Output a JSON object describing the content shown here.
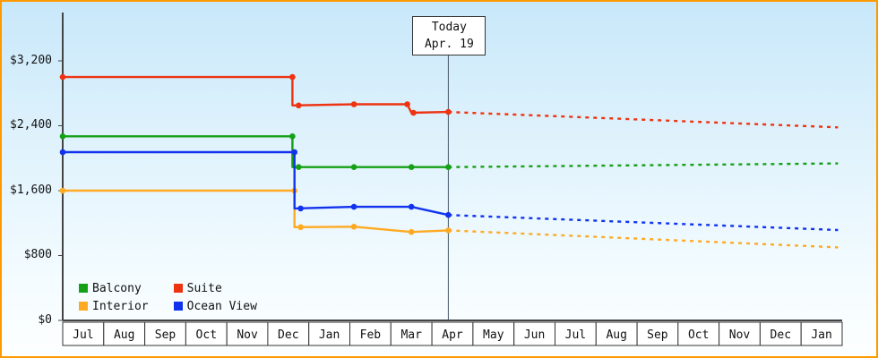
{
  "chart_data": {
    "type": "line",
    "title": "",
    "xlabel": "",
    "ylabel": "",
    "ylim": [
      0,
      3200
    ],
    "yticks": [
      0,
      800,
      1600,
      2400,
      3200
    ],
    "ytick_labels": [
      "$0",
      "$800",
      "$1,600",
      "$2,400",
      "$3,200"
    ],
    "x_months": [
      "Jul",
      "Aug",
      "Sep",
      "Oct",
      "Nov",
      "Dec",
      "Jan",
      "Feb",
      "Mar",
      "Apr",
      "May",
      "Jun",
      "Jul",
      "Aug",
      "Sep",
      "Oct",
      "Nov",
      "Dec",
      "Jan"
    ],
    "grid": false,
    "legend_position": "bottom-left",
    "today": {
      "label": "Today",
      "date": "Apr. 19",
      "month_position": 9.4
    },
    "series": [
      {
        "name": "Balcony",
        "color": "#16a016",
        "solid": [
          [
            0,
            2270
          ],
          [
            5.6,
            2270
          ],
          [
            5.6,
            1890
          ],
          [
            9.4,
            1890
          ]
        ],
        "dotted": [
          [
            9.4,
            1890
          ],
          [
            18.9,
            1935
          ]
        ],
        "markers": [
          [
            0,
            2270
          ],
          [
            5.6,
            2270
          ],
          [
            5.75,
            1890
          ],
          [
            7.1,
            1890
          ],
          [
            8.5,
            1890
          ],
          [
            9.4,
            1890
          ]
        ]
      },
      {
        "name": "Suite",
        "color": "#ee3311",
        "solid": [
          [
            0,
            3000
          ],
          [
            5.6,
            3000
          ],
          [
            5.6,
            2650
          ],
          [
            7.1,
            2665
          ],
          [
            8.4,
            2665
          ],
          [
            8.5,
            2560
          ],
          [
            9.4,
            2570
          ]
        ],
        "dotted": [
          [
            9.4,
            2570
          ],
          [
            18.9,
            2380
          ]
        ],
        "markers": [
          [
            0,
            3000
          ],
          [
            5.6,
            3000
          ],
          [
            5.75,
            2650
          ],
          [
            7.1,
            2665
          ],
          [
            8.4,
            2665
          ],
          [
            8.55,
            2560
          ],
          [
            9.4,
            2570
          ]
        ]
      },
      {
        "name": "Interior",
        "color": "#ffaa22",
        "solid": [
          [
            0,
            1600
          ],
          [
            5.65,
            1600
          ],
          [
            5.65,
            1150
          ],
          [
            7.1,
            1155
          ],
          [
            8.5,
            1090
          ],
          [
            9.4,
            1110
          ]
        ],
        "dotted": [
          [
            9.4,
            1110
          ],
          [
            18.9,
            900
          ]
        ],
        "markers": [
          [
            0,
            1600
          ],
          [
            5.65,
            1600
          ],
          [
            5.8,
            1150
          ],
          [
            7.1,
            1155
          ],
          [
            8.5,
            1090
          ],
          [
            9.4,
            1110
          ]
        ]
      },
      {
        "name": "Ocean View",
        "color": "#1133ee",
        "solid": [
          [
            0,
            2075
          ],
          [
            5.65,
            2075
          ],
          [
            5.65,
            1380
          ],
          [
            7.1,
            1400
          ],
          [
            8.5,
            1400
          ],
          [
            9.4,
            1300
          ]
        ],
        "dotted": [
          [
            9.4,
            1300
          ],
          [
            18.9,
            1115
          ]
        ],
        "markers": [
          [
            0,
            2075
          ],
          [
            5.65,
            2075
          ],
          [
            5.8,
            1380
          ],
          [
            7.1,
            1400
          ],
          [
            8.5,
            1400
          ],
          [
            9.4,
            1300
          ]
        ]
      }
    ]
  }
}
